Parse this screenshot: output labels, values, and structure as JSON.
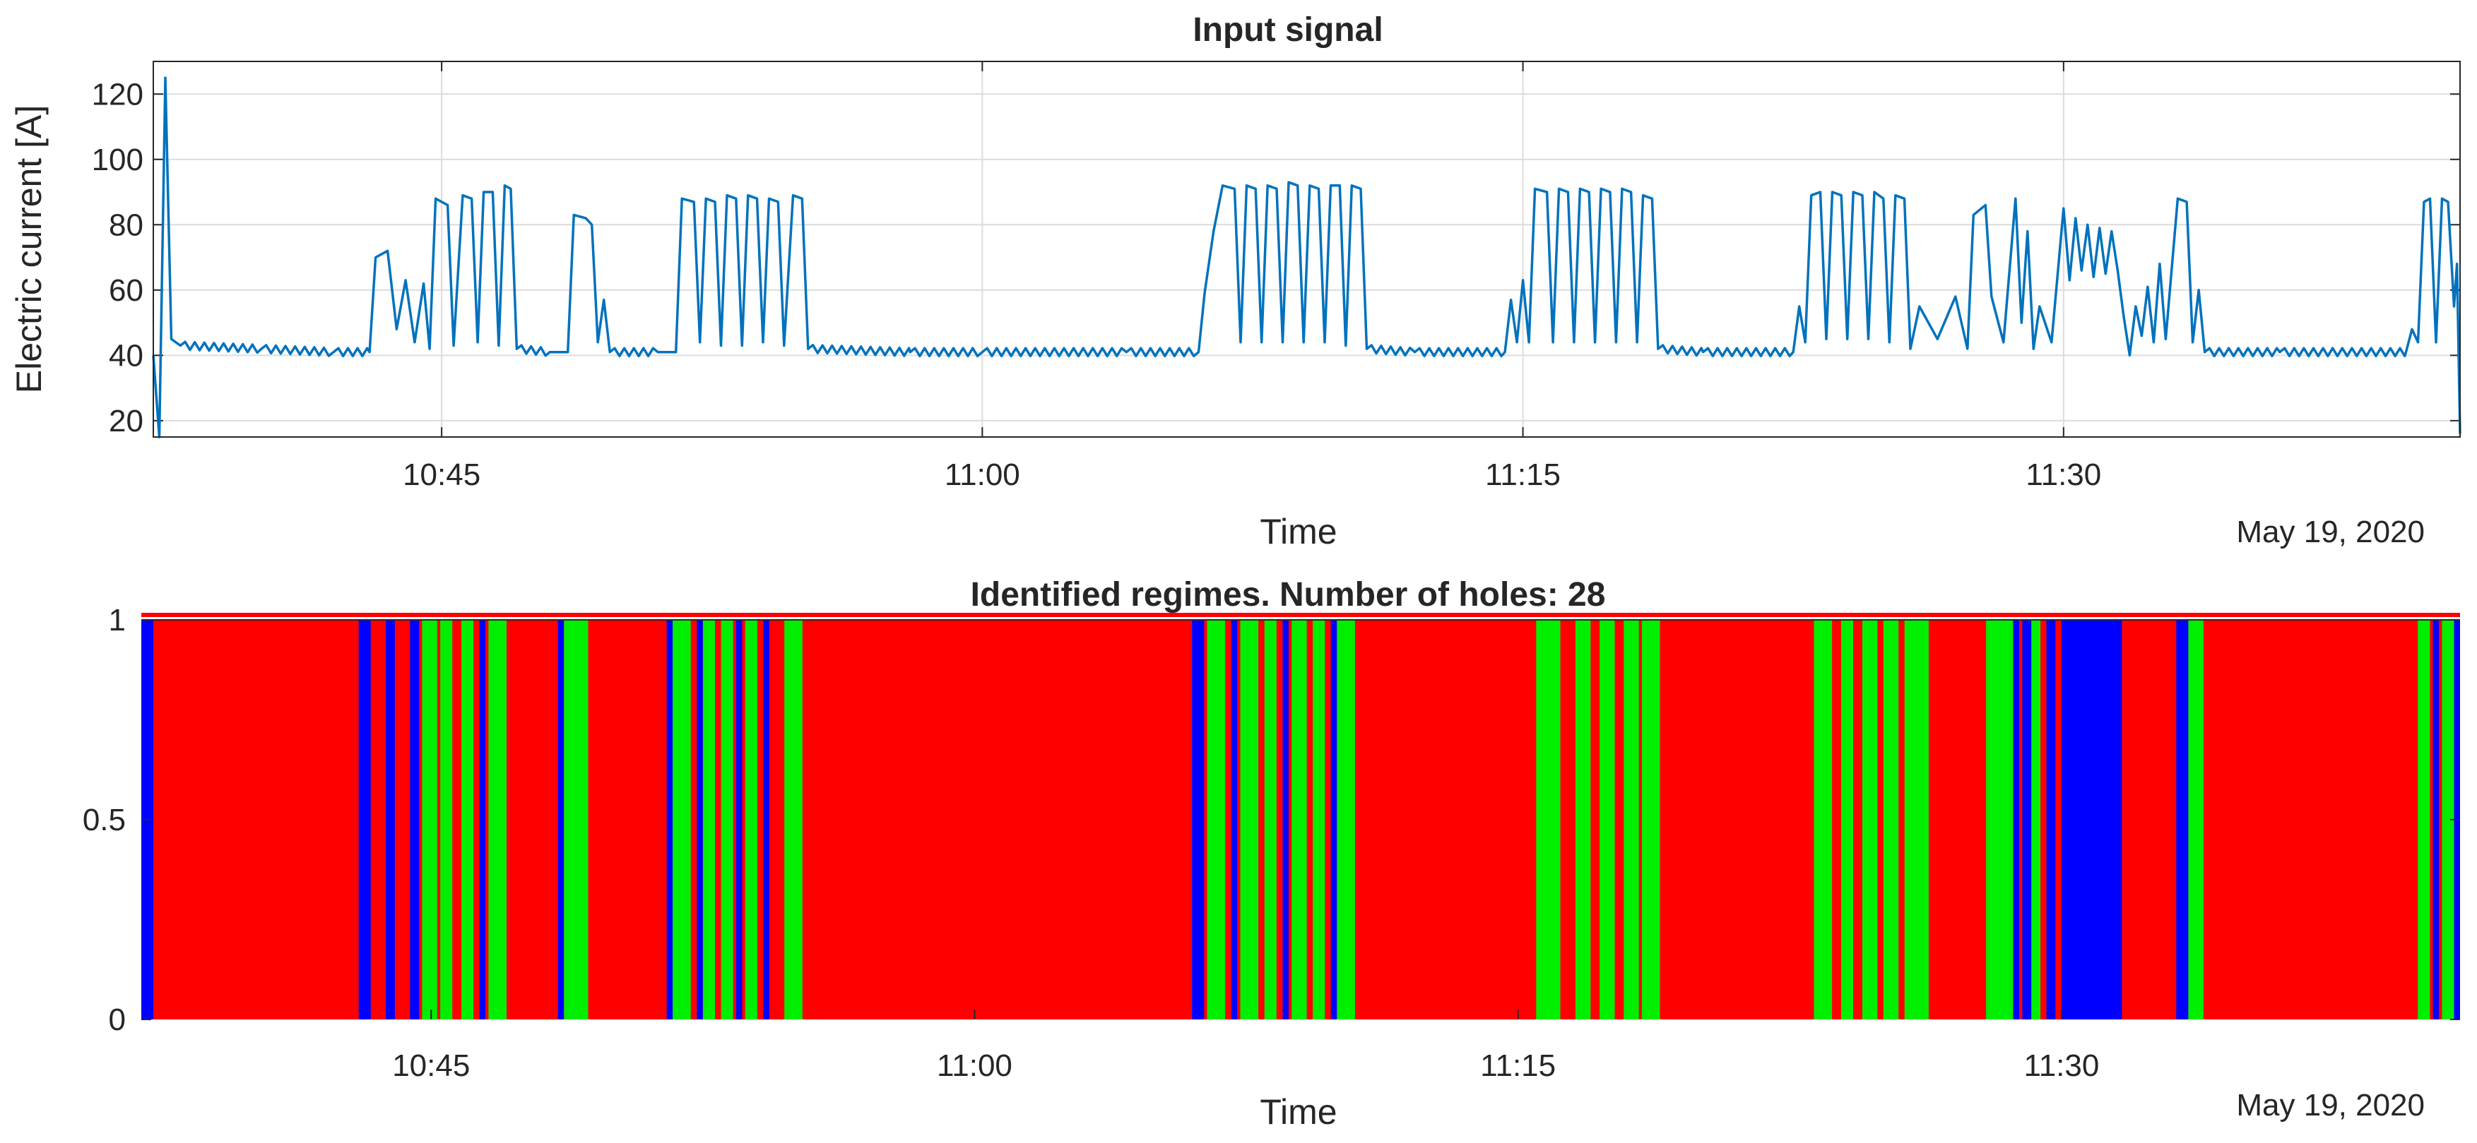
{
  "chart_data": [
    {
      "type": "line",
      "title": "Input signal",
      "xlabel": "Time",
      "ylabel": "Electric current [A]",
      "date_label": "May 19, 2020",
      "x_unit": "time of day",
      "xlim": [
        "10:37",
        "11:41"
      ],
      "ylim": [
        15,
        130
      ],
      "xticks": [
        "10:45",
        "11:00",
        "11:15",
        "11:30"
      ],
      "yticks": [
        20,
        40,
        60,
        80,
        100,
        120
      ],
      "grid": true,
      "color": "#0072BD",
      "series": [
        {
          "comment_free": true,
          "points": [
            [
              "10:37:00",
              40
            ],
            [
              "10:37:10",
              15
            ],
            [
              "10:37:20",
              125
            ],
            [
              "10:37:30",
              45
            ],
            [
              "10:37:45",
              43
            ],
            [
              "10:40:00",
              42
            ],
            [
              "10:42:00",
              41
            ],
            [
              "10:43:00",
              41
            ],
            [
              "10:43:10",
              70
            ],
            [
              "10:43:30",
              72
            ],
            [
              "10:43:45",
              48
            ],
            [
              "10:44:00",
              63
            ],
            [
              "10:44:15",
              44
            ],
            [
              "10:44:30",
              62
            ],
            [
              "10:44:40",
              42
            ],
            [
              "10:44:50",
              88
            ],
            [
              "10:45:10",
              86
            ],
            [
              "10:45:20",
              43
            ],
            [
              "10:45:35",
              89
            ],
            [
              "10:45:50",
              88
            ],
            [
              "10:46:00",
              44
            ],
            [
              "10:46:10",
              90
            ],
            [
              "10:46:25",
              90
            ],
            [
              "10:46:35",
              43
            ],
            [
              "10:46:45",
              92
            ],
            [
              "10:46:55",
              91
            ],
            [
              "10:47:05",
              42
            ],
            [
              "10:48:00",
              41
            ],
            [
              "10:48:30",
              41
            ],
            [
              "10:48:40",
              83
            ],
            [
              "10:49:00",
              82
            ],
            [
              "10:49:10",
              80
            ],
            [
              "10:49:20",
              44
            ],
            [
              "10:49:30",
              57
            ],
            [
              "10:49:40",
              41
            ],
            [
              "10:51:00",
              41
            ],
            [
              "10:51:30",
              41
            ],
            [
              "10:51:40",
              88
            ],
            [
              "10:52:00",
              87
            ],
            [
              "10:52:10",
              44
            ],
            [
              "10:52:20",
              88
            ],
            [
              "10:52:35",
              87
            ],
            [
              "10:52:45",
              43
            ],
            [
              "10:52:55",
              89
            ],
            [
              "10:53:10",
              88
            ],
            [
              "10:53:20",
              43
            ],
            [
              "10:53:30",
              89
            ],
            [
              "10:53:45",
              88
            ],
            [
              "10:53:55",
              44
            ],
            [
              "10:54:05",
              88
            ],
            [
              "10:54:20",
              87
            ],
            [
              "10:54:30",
              43
            ],
            [
              "10:54:45",
              89
            ],
            [
              "10:55:00",
              88
            ],
            [
              "10:55:10",
              42
            ],
            [
              "10:58:00",
              41
            ],
            [
              "11:00:00",
              41
            ],
            [
              "11:04:00",
              41
            ],
            [
              "11:06:00",
              41
            ],
            [
              "11:06:10",
              59
            ],
            [
              "11:06:25",
              78
            ],
            [
              "11:06:40",
              92
            ],
            [
              "11:07:00",
              91
            ],
            [
              "11:07:10",
              44
            ],
            [
              "11:07:20",
              92
            ],
            [
              "11:07:35",
              91
            ],
            [
              "11:07:45",
              44
            ],
            [
              "11:07:55",
              92
            ],
            [
              "11:08:10",
              91
            ],
            [
              "11:08:20",
              44
            ],
            [
              "11:08:30",
              93
            ],
            [
              "11:08:45",
              92
            ],
            [
              "11:08:55",
              44
            ],
            [
              "11:09:05",
              92
            ],
            [
              "11:09:20",
              91
            ],
            [
              "11:09:30",
              44
            ],
            [
              "11:09:40",
              92
            ],
            [
              "11:09:55",
              92
            ],
            [
              "11:10:05",
              43
            ],
            [
              "11:10:15",
              92
            ],
            [
              "11:10:30",
              91
            ],
            [
              "11:10:40",
              42
            ],
            [
              "11:12:00",
              41
            ],
            [
              "11:14:30",
              41
            ],
            [
              "11:14:40",
              57
            ],
            [
              "11:14:50",
              44
            ],
            [
              "11:15:00",
              63
            ],
            [
              "11:15:10",
              44
            ],
            [
              "11:15:20",
              91
            ],
            [
              "11:15:40",
              90
            ],
            [
              "11:15:50",
              44
            ],
            [
              "11:16:00",
              91
            ],
            [
              "11:16:15",
              90
            ],
            [
              "11:16:25",
              44
            ],
            [
              "11:16:35",
              91
            ],
            [
              "11:16:50",
              90
            ],
            [
              "11:17:00",
              44
            ],
            [
              "11:17:10",
              91
            ],
            [
              "11:17:25",
              90
            ],
            [
              "11:17:35",
              44
            ],
            [
              "11:17:45",
              91
            ],
            [
              "11:18:00",
              90
            ],
            [
              "11:18:10",
              44
            ],
            [
              "11:18:20",
              89
            ],
            [
              "11:18:35",
              88
            ],
            [
              "11:18:45",
              42
            ],
            [
              "11:20:00",
              41
            ],
            [
              "11:22:30",
              41
            ],
            [
              "11:22:40",
              55
            ],
            [
              "11:22:50",
              44
            ],
            [
              "11:23:00",
              89
            ],
            [
              "11:23:15",
              90
            ],
            [
              "11:23:25",
              45
            ],
            [
              "11:23:35",
              90
            ],
            [
              "11:23:50",
              89
            ],
            [
              "11:24:00",
              45
            ],
            [
              "11:24:10",
              90
            ],
            [
              "11:24:25",
              89
            ],
            [
              "11:24:35",
              45
            ],
            [
              "11:24:45",
              90
            ],
            [
              "11:25:00",
              88
            ],
            [
              "11:25:10",
              44
            ],
            [
              "11:25:20",
              89
            ],
            [
              "11:25:35",
              88
            ],
            [
              "11:25:45",
              42
            ],
            [
              "11:26:00",
              55
            ],
            [
              "11:26:30",
              45
            ],
            [
              "11:27:00",
              58
            ],
            [
              "11:27:20",
              42
            ],
            [
              "11:27:30",
              83
            ],
            [
              "11:27:50",
              86
            ],
            [
              "11:28:00",
              58
            ],
            [
              "11:28:20",
              44
            ],
            [
              "11:28:40",
              88
            ],
            [
              "11:28:50",
              50
            ],
            [
              "11:29:00",
              78
            ],
            [
              "11:29:10",
              42
            ],
            [
              "11:29:20",
              55
            ],
            [
              "11:29:40",
              44
            ],
            [
              "11:30:00",
              85
            ],
            [
              "11:30:10",
              63
            ],
            [
              "11:30:20",
              82
            ],
            [
              "11:30:30",
              66
            ],
            [
              "11:30:40",
              80
            ],
            [
              "11:30:50",
              64
            ],
            [
              "11:31:00",
              79
            ],
            [
              "11:31:10",
              65
            ],
            [
              "11:31:20",
              78
            ],
            [
              "11:31:30",
              66
            ],
            [
              "11:31:40",
              52
            ],
            [
              "11:31:50",
              40
            ],
            [
              "11:32:00",
              55
            ],
            [
              "11:32:10",
              46
            ],
            [
              "11:32:20",
              61
            ],
            [
              "11:32:30",
              44
            ],
            [
              "11:32:40",
              68
            ],
            [
              "11:32:50",
              45
            ],
            [
              "11:33:10",
              88
            ],
            [
              "11:33:25",
              87
            ],
            [
              "11:33:35",
              44
            ],
            [
              "11:33:45",
              60
            ],
            [
              "11:33:55",
              41
            ],
            [
              "11:36:00",
              41
            ],
            [
              "11:39:30",
              41
            ],
            [
              "11:39:40",
              48
            ],
            [
              "11:39:50",
              44
            ],
            [
              "11:40:00",
              87
            ],
            [
              "11:40:10",
              88
            ],
            [
              "11:40:20",
              44
            ],
            [
              "11:40:30",
              88
            ],
            [
              "11:40:40",
              87
            ],
            [
              "11:40:50",
              55
            ],
            [
              "11:40:55",
              68
            ],
            [
              "11:41:00",
              16
            ]
          ]
        }
      ]
    },
    {
      "type": "bar",
      "title": "Identified regimes. Number of holes: 28",
      "xlabel": "Time",
      "date_label": "May 19, 2020",
      "xlim": [
        "10:37",
        "11:41"
      ],
      "ylim": [
        0,
        1
      ],
      "xticks": [
        "10:45",
        "11:00",
        "11:15",
        "11:30"
      ],
      "yticks": [
        "0",
        "0.5",
        "1"
      ],
      "grid": false,
      "regime_colors": {
        "base": "#ff0000",
        "a": "#00ee00",
        "b": "#0000ff"
      },
      "segments": [
        {
          "start": "10:37:00",
          "end": "10:37:20",
          "regime": "b"
        },
        {
          "start": "10:43:00",
          "end": "10:43:20",
          "regime": "b"
        },
        {
          "start": "10:43:45",
          "end": "10:44:00",
          "regime": "b"
        },
        {
          "start": "10:44:25",
          "end": "10:44:40",
          "regime": "b"
        },
        {
          "start": "10:44:45",
          "end": "10:45:10",
          "regime": "a"
        },
        {
          "start": "10:45:15",
          "end": "10:45:35",
          "regime": "a"
        },
        {
          "start": "10:45:50",
          "end": "10:46:10",
          "regime": "a"
        },
        {
          "start": "10:46:20",
          "end": "10:46:30",
          "regime": "b"
        },
        {
          "start": "10:46:35",
          "end": "10:47:05",
          "regime": "a"
        },
        {
          "start": "10:48:30",
          "end": "10:48:40",
          "regime": "b"
        },
        {
          "start": "10:48:40",
          "end": "10:49:20",
          "regime": "a"
        },
        {
          "start": "10:51:30",
          "end": "10:51:40",
          "regime": "b"
        },
        {
          "start": "10:51:40",
          "end": "10:52:10",
          "regime": "a"
        },
        {
          "start": "10:52:20",
          "end": "10:52:30",
          "regime": "b"
        },
        {
          "start": "10:52:30",
          "end": "10:52:50",
          "regime": "a"
        },
        {
          "start": "10:53:00",
          "end": "10:53:20",
          "regime": "a"
        },
        {
          "start": "10:53:25",
          "end": "10:53:35",
          "regime": "b"
        },
        {
          "start": "10:53:40",
          "end": "10:54:00",
          "regime": "a"
        },
        {
          "start": "10:54:10",
          "end": "10:54:20",
          "regime": "b"
        },
        {
          "start": "10:54:45",
          "end": "10:55:15",
          "regime": "a"
        },
        {
          "start": "11:06:00",
          "end": "11:06:20",
          "regime": "b"
        },
        {
          "start": "11:06:25",
          "end": "11:06:55",
          "regime": "a"
        },
        {
          "start": "11:07:05",
          "end": "11:07:15",
          "regime": "b"
        },
        {
          "start": "11:07:20",
          "end": "11:07:50",
          "regime": "a"
        },
        {
          "start": "11:08:00",
          "end": "11:08:20",
          "regime": "a"
        },
        {
          "start": "11:08:30",
          "end": "11:08:40",
          "regime": "b"
        },
        {
          "start": "11:08:45",
          "end": "11:09:10",
          "regime": "a"
        },
        {
          "start": "11:09:20",
          "end": "11:09:40",
          "regime": "a"
        },
        {
          "start": "11:09:50",
          "end": "11:10:00",
          "regime": "b"
        },
        {
          "start": "11:10:00",
          "end": "11:10:30",
          "regime": "a"
        },
        {
          "start": "11:15:30",
          "end": "11:16:10",
          "regime": "a"
        },
        {
          "start": "11:16:35",
          "end": "11:17:00",
          "regime": "a"
        },
        {
          "start": "11:17:15",
          "end": "11:17:40",
          "regime": "a"
        },
        {
          "start": "11:17:55",
          "end": "11:18:20",
          "regime": "a"
        },
        {
          "start": "11:18:25",
          "end": "11:18:55",
          "regime": "a"
        },
        {
          "start": "11:23:10",
          "end": "11:23:40",
          "regime": "a"
        },
        {
          "start": "11:23:55",
          "end": "11:24:15",
          "regime": "a"
        },
        {
          "start": "11:24:30",
          "end": "11:24:55",
          "regime": "a"
        },
        {
          "start": "11:25:05",
          "end": "11:25:30",
          "regime": "a"
        },
        {
          "start": "11:25:40",
          "end": "11:26:20",
          "regime": "a"
        },
        {
          "start": "11:27:55",
          "end": "11:28:40",
          "regime": "a"
        },
        {
          "start": "11:28:40",
          "end": "11:28:50",
          "regime": "b"
        },
        {
          "start": "11:28:55",
          "end": "11:29:10",
          "regime": "b"
        },
        {
          "start": "11:29:10",
          "end": "11:29:25",
          "regime": "a"
        },
        {
          "start": "11:29:35",
          "end": "11:29:50",
          "regime": "b"
        },
        {
          "start": "11:30:00",
          "end": "11:31:40",
          "regime": "b"
        },
        {
          "start": "11:33:10",
          "end": "11:33:30",
          "regime": "b"
        },
        {
          "start": "11:33:30",
          "end": "11:33:55",
          "regime": "a"
        },
        {
          "start": "11:39:50",
          "end": "11:40:10",
          "regime": "a"
        },
        {
          "start": "11:40:15",
          "end": "11:40:25",
          "regime": "b"
        },
        {
          "start": "11:40:30",
          "end": "11:40:50",
          "regime": "a"
        },
        {
          "start": "11:40:50",
          "end": "11:41:00",
          "regime": "b"
        }
      ]
    }
  ]
}
